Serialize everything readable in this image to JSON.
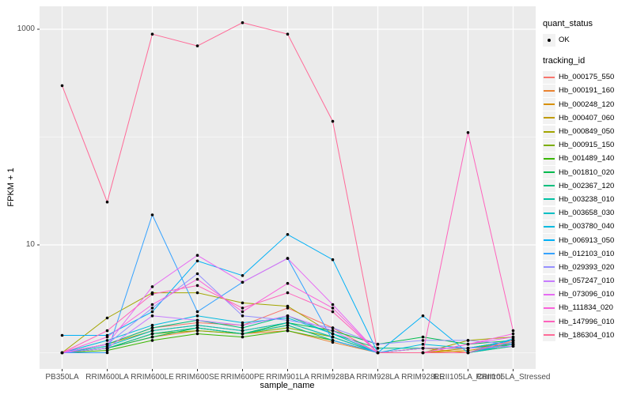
{
  "axes": {
    "y_title": "FPKM + 1",
    "x_title": "sample_name",
    "y_tick_labels": [
      "1000",
      "10"
    ]
  },
  "legend": {
    "quant_status_title": "quant_status",
    "ok_label": "OK",
    "tracking_id_title": "tracking_id"
  },
  "colors": {
    "panel_background": "#EBEBEB",
    "gridline": "#FFFFFF",
    "point": "#000000",
    "tick_text": "#4D4D4D",
    "legend_key_background": "#F2F2F2"
  },
  "chart_data": {
    "type": "line",
    "title": "",
    "xlabel": "sample_name",
    "ylabel": "FPKM + 1",
    "y_scale": "log10",
    "y_ticks": [
      10,
      1000
    ],
    "y_minor_ticks": [
      1,
      100
    ],
    "ylim": [
      0.7,
      1630
    ],
    "grid": true,
    "legend_position": "right",
    "point_color": "#000000",
    "categories": [
      "PB350LA",
      "RRIM600LA",
      "RRIM600LE",
      "RRIM600SE",
      "RRIM600PE",
      "RRIM901LA",
      "RRIM928BA",
      "RRIM928LA",
      "RRIM928LE",
      "RRII105LA_Control",
      "RRII105LA_Stressed"
    ],
    "series": [
      {
        "name": "Hb_000175_550",
        "color": "#F8766D",
        "values": [
          1,
          1.2,
          1.7,
          1.9,
          1.8,
          2.6,
          1.7,
          1,
          1.1,
          1.1,
          1.3
        ]
      },
      {
        "name": "Hb_000191_160",
        "color": "#EA8331",
        "values": [
          1,
          1.1,
          1.4,
          1.6,
          1.5,
          1.6,
          1.25,
          1,
          1.1,
          1,
          1.15
        ]
      },
      {
        "name": "Hb_000248_120",
        "color": "#D89000",
        "values": [
          1,
          1.1,
          1.5,
          1.7,
          1.5,
          1.8,
          1.3,
          1,
          1,
          1.05,
          1.2
        ]
      },
      {
        "name": "Hb_000407_060",
        "color": "#C09B00",
        "values": [
          1,
          1.2,
          1.6,
          1.8,
          1.6,
          1.9,
          1.4,
          1,
          1,
          1.1,
          1.25
        ]
      },
      {
        "name": "Hb_000849_050",
        "color": "#A3A500",
        "values": [
          1,
          2.1,
          3.6,
          3.6,
          2.9,
          2.7,
          1.5,
          1,
          1,
          1.3,
          1.4
        ]
      },
      {
        "name": "Hb_000915_150",
        "color": "#7CAE00",
        "values": [
          1,
          1.1,
          1.5,
          1.6,
          1.5,
          1.7,
          1.4,
          1,
          1,
          1,
          1.2
        ]
      },
      {
        "name": "Hb_001489_140",
        "color": "#39B600",
        "values": [
          1,
          1.05,
          1.3,
          1.5,
          1.4,
          1.6,
          1.3,
          1,
          1.1,
          1.1,
          1.2
        ]
      },
      {
        "name": "Hb_001810_020",
        "color": "#00BB4E",
        "values": [
          1,
          1.1,
          1.4,
          1.7,
          1.5,
          1.9,
          1.6,
          1.2,
          1.4,
          1.2,
          1.3
        ]
      },
      {
        "name": "Hb_002367_120",
        "color": "#00BF7D",
        "values": [
          1,
          1.2,
          1.7,
          2.0,
          1.7,
          2.2,
          1.5,
          1.1,
          1.1,
          1.1,
          1.3
        ]
      },
      {
        "name": "Hb_003238_010",
        "color": "#00C1A3",
        "values": [
          1,
          1.1,
          1.5,
          1.7,
          1.5,
          1.8,
          1.3,
          1,
          1,
          1,
          1.15
        ]
      },
      {
        "name": "Hb_003658_030",
        "color": "#00BFC4",
        "values": [
          1,
          1.15,
          1.6,
          1.8,
          1.6,
          1.9,
          1.4,
          1,
          1,
          1,
          1.2
        ]
      },
      {
        "name": "Hb_003780_040",
        "color": "#00BAE0",
        "values": [
          1,
          1.3,
          1.8,
          2.2,
          1.9,
          2.1,
          1.5,
          1,
          1.2,
          1.1,
          1.3
        ]
      },
      {
        "name": "Hb_006913_050",
        "color": "#00B0F6",
        "values": [
          1.45,
          1.45,
          2.4,
          7.1,
          5.2,
          12.5,
          7.3,
          1,
          2.2,
          1,
          1.35
        ]
      },
      {
        "name": "Hb_012103_010",
        "color": "#35A2FF",
        "values": [
          1,
          1,
          19,
          2.4,
          4.5,
          7.5,
          1.3,
          1,
          1,
          1,
          1.25
        ]
      },
      {
        "name": "Hb_029393_020",
        "color": "#9590FF",
        "values": [
          1,
          1.2,
          2.6,
          5.4,
          2.2,
          2.0,
          1.7,
          1.2,
          1.3,
          1.3,
          1.2
        ]
      },
      {
        "name": "Hb_057247_010",
        "color": "#C77CFF",
        "values": [
          1,
          1.1,
          2.2,
          2.0,
          1.8,
          2.2,
          1.6,
          1,
          1.1,
          1.1,
          1.15
        ]
      },
      {
        "name": "Hb_073096_010",
        "color": "#E76BF3",
        "values": [
          1,
          1.2,
          4.1,
          8.0,
          4.5,
          7.5,
          2.8,
          1,
          1,
          1.2,
          1.4
        ]
      },
      {
        "name": "Hb_111834_020",
        "color": "#FA62DB",
        "values": [
          1,
          1.4,
          2.8,
          4.8,
          2.4,
          4.4,
          2.6,
          1,
          1,
          1.2,
          1.5
        ]
      },
      {
        "name": "Hb_147996_010",
        "color": "#FF62BC",
        "values": [
          1,
          1.6,
          3.5,
          4.2,
          2.6,
          3.6,
          2.4,
          1,
          1,
          110,
          1.6
        ]
      },
      {
        "name": "Hb_186304_010",
        "color": "#FF6A98",
        "values": [
          300,
          25,
          900,
          700,
          1150,
          900,
          140,
          1,
          1,
          1,
          1.3
        ]
      }
    ]
  }
}
